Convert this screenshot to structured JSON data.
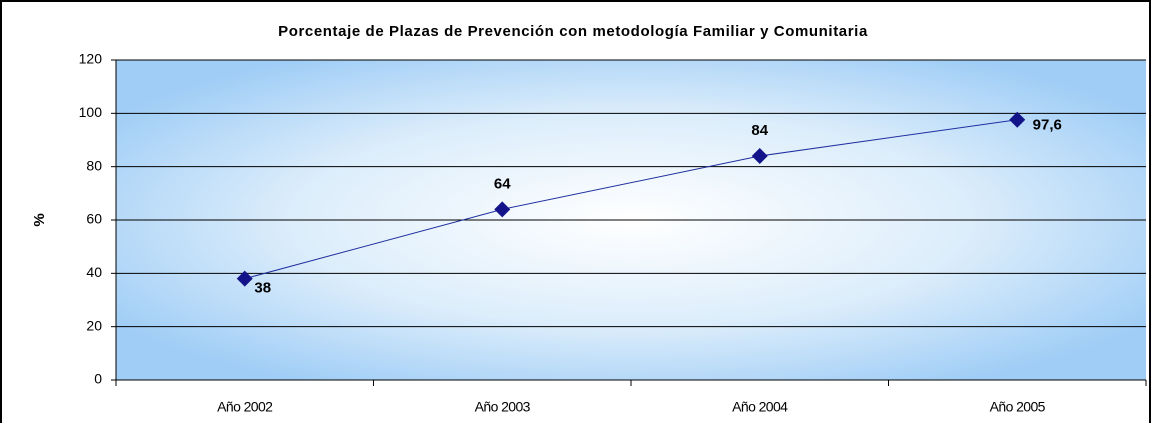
{
  "chart_data": {
    "type": "line",
    "title": "Porcentaje de Plazas de Prevención con metodología Familiar y Comunitaria",
    "y_label": "%",
    "categories": [
      "Año 2002",
      "Año 2003",
      "Año 2004",
      "Año 2005"
    ],
    "series": [
      {
        "name": "Porcentaje",
        "color": "#1f2f9f",
        "values": [
          38,
          64,
          84,
          97.6
        ],
        "value_labels": [
          "38",
          "64",
          "84",
          "97,6"
        ]
      }
    ],
    "ylim": [
      0,
      120
    ],
    "yticks": [
      0,
      20,
      40,
      60,
      80,
      100,
      120
    ],
    "grid": true
  }
}
